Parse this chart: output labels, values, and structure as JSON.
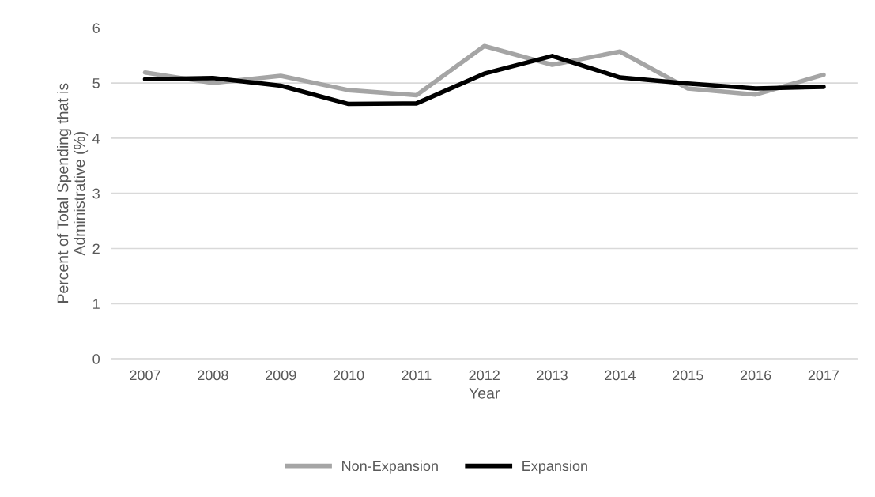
{
  "chart_data": {
    "type": "line",
    "xlabel": "Year",
    "ylabel": "Percent of Total Spending that is\nAdministrative (%)",
    "categories": [
      "2007",
      "2008",
      "2009",
      "2010",
      "2011",
      "2012",
      "2013",
      "2014",
      "2015",
      "2016",
      "2017"
    ],
    "series": [
      {
        "name": "Non-Expansion",
        "color": "#a5a5a5",
        "values": [
          5.19,
          5.0,
          5.13,
          4.87,
          4.78,
          5.67,
          5.33,
          5.57,
          4.9,
          4.79,
          5.15
        ]
      },
      {
        "name": "Expansion",
        "color": "#000000",
        "values": [
          5.07,
          5.09,
          4.95,
          4.62,
          4.63,
          5.17,
          5.49,
          5.1,
          4.99,
          4.9,
          4.93
        ]
      }
    ],
    "ylim": [
      0,
      6
    ],
    "yticks": [
      0,
      1,
      2,
      3,
      4,
      5,
      6
    ],
    "grid": "y",
    "legend": "bottom",
    "marker": "none",
    "line_style": "solid"
  }
}
